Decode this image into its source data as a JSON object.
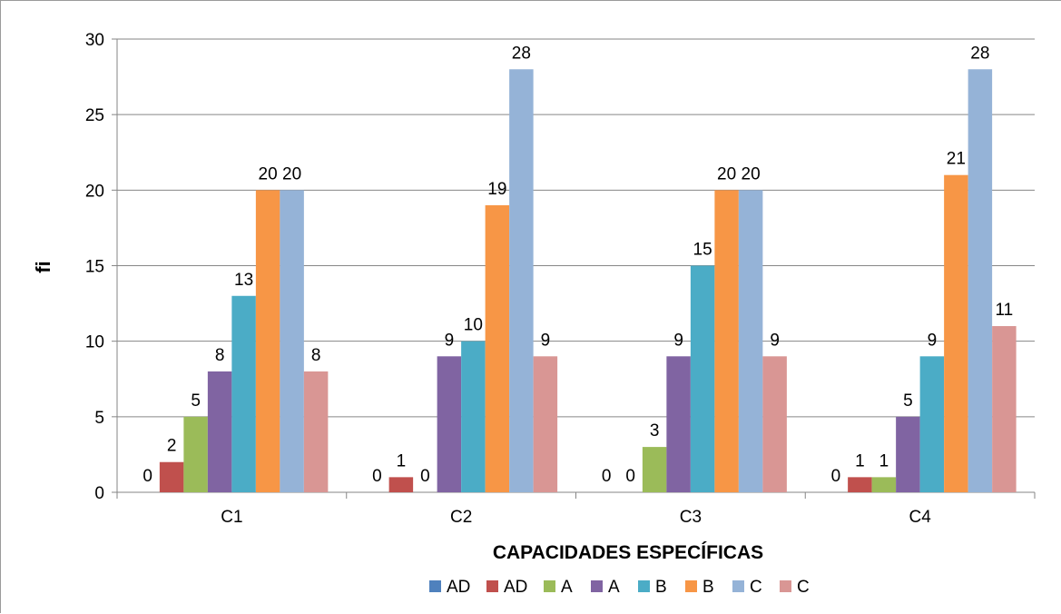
{
  "chart_data": {
    "type": "bar",
    "title": "",
    "xlabel": "CAPACIDADES  ESPECÍFICAS",
    "ylabel": "fi",
    "ylim": [
      0,
      30
    ],
    "yticks": [
      0,
      5,
      10,
      15,
      20,
      25,
      30
    ],
    "grid": true,
    "legend_position": "bottom",
    "categories": [
      "C1",
      "C2",
      "C3",
      "C4"
    ],
    "series": [
      {
        "name": "AD",
        "color": "#4f81bd",
        "values": [
          0,
          0,
          0,
          0
        ]
      },
      {
        "name": "AD",
        "color": "#c0504d",
        "values": [
          2,
          1,
          0,
          1
        ]
      },
      {
        "name": "A",
        "color": "#9bbb59",
        "values": [
          5,
          0,
          3,
          1
        ]
      },
      {
        "name": "A",
        "color": "#8064a2",
        "values": [
          8,
          9,
          9,
          5
        ]
      },
      {
        "name": "B",
        "color": "#4bacc6",
        "values": [
          13,
          10,
          15,
          9
        ]
      },
      {
        "name": "B",
        "color": "#f79646",
        "values": [
          20,
          19,
          20,
          21
        ]
      },
      {
        "name": "C",
        "color": "#95b3d7",
        "values": [
          20,
          28,
          20,
          28
        ]
      },
      {
        "name": "C",
        "color": "#d99694",
        "values": [
          8,
          9,
          9,
          11
        ]
      }
    ]
  }
}
